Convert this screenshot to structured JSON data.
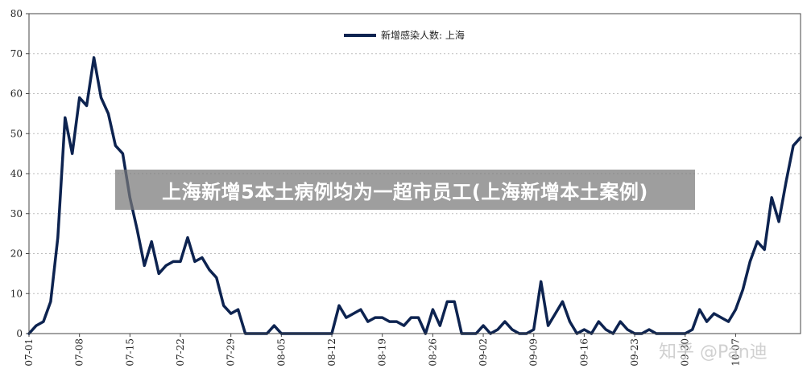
{
  "chart_data": {
    "type": "line",
    "legend_position": "top-right",
    "grid": true,
    "ylim": [
      0,
      80
    ],
    "yticks": [
      0,
      10,
      20,
      30,
      40,
      50,
      60,
      70,
      80
    ],
    "x_tick_labels": [
      "07-01",
      "07-08",
      "07-15",
      "07-22",
      "07-29",
      "08-05",
      "08-12",
      "08-19",
      "08-26",
      "09-02",
      "09-09",
      "09-16",
      "09-23",
      "09-30",
      "10-07"
    ],
    "series": [
      {
        "name": "新增感染人数: 上海",
        "color": "#0d2350",
        "values": [
          0,
          2,
          3,
          8,
          24,
          54,
          45,
          59,
          57,
          69,
          59,
          55,
          47,
          45,
          34,
          26,
          17,
          23,
          15,
          17,
          18,
          18,
          24,
          18,
          19,
          16,
          14,
          7,
          5,
          6,
          0,
          0,
          0,
          0,
          2,
          0,
          0,
          0,
          0,
          0,
          0,
          0,
          0,
          7,
          4,
          5,
          6,
          3,
          4,
          4,
          3,
          3,
          2,
          4,
          4,
          0,
          6,
          2,
          8,
          8,
          0,
          0,
          0,
          2,
          0,
          1,
          3,
          1,
          0,
          0,
          1,
          13,
          2,
          5,
          8,
          3,
          0,
          1,
          0,
          3,
          1,
          0,
          3,
          1,
          0,
          0,
          1,
          0,
          0,
          0,
          0,
          0,
          1,
          6,
          3,
          5,
          4,
          3,
          6,
          11,
          18,
          23,
          21,
          34,
          28,
          38,
          47,
          49
        ]
      }
    ]
  },
  "banner": {
    "text": "上海新增5本土病例均为一超市员工(上海新增本土案例)"
  },
  "watermark": {
    "text": "知乎 @Pan迪"
  }
}
